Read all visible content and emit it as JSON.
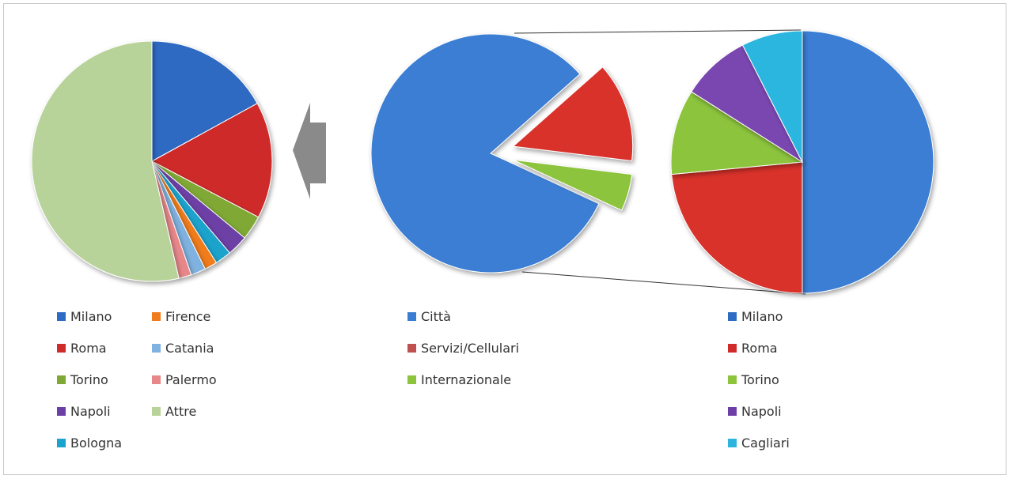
{
  "chart_data": [
    {
      "type": "pie",
      "name": "left",
      "slices": [
        {
          "label": "Milano",
          "value": 17.0,
          "color": "#2e6bc2"
        },
        {
          "label": "Roma",
          "value": 15.7,
          "color": "#cf2b2b"
        },
        {
          "label": "Torino",
          "value": 3.3,
          "color": "#7fa834"
        },
        {
          "label": "Napoli",
          "value": 2.8,
          "color": "#6d3fa6"
        },
        {
          "label": "Bologna",
          "value": 2.2,
          "color": "#1aa3cc"
        },
        {
          "label": "Firence",
          "value": 1.7,
          "color": "#f07c1e"
        },
        {
          "label": "Catania",
          "value": 2.0,
          "color": "#7fb2e0"
        },
        {
          "label": "Palermo",
          "value": 1.7,
          "color": "#e8878a"
        },
        {
          "label": "Attre",
          "value": 53.6,
          "color": "#b8d39a"
        }
      ]
    },
    {
      "type": "pie",
      "name": "middle",
      "slices": [
        {
          "label": "Città",
          "value": 81.5,
          "color": "#3a7ed4"
        },
        {
          "label": "Servizi/Cellulari",
          "value": 13.5,
          "color": "#d9312c"
        },
        {
          "label": "Internazionale",
          "value": 5.0,
          "color": "#8cc43c"
        }
      ]
    },
    {
      "type": "pie",
      "name": "right",
      "slices": [
        {
          "label": "Milano",
          "value": 50.0,
          "color": "#3a7ed4"
        },
        {
          "label": "Roma",
          "value": 23.5,
          "color": "#d9312c"
        },
        {
          "label": "Torino",
          "value": 10.5,
          "color": "#8cc43c"
        },
        {
          "label": "Napoli",
          "value": 8.5,
          "color": "#7a47b0"
        },
        {
          "label": "Cagliari",
          "value": 7.5,
          "color": "#2cb6df"
        }
      ]
    }
  ],
  "legends": {
    "left": [
      {
        "label": "Milano",
        "color": "#2e6bc2"
      },
      {
        "label": "Roma",
        "color": "#cf2b2b"
      },
      {
        "label": "Torino",
        "color": "#7fa834"
      },
      {
        "label": "Napoli",
        "color": "#6d3fa6"
      },
      {
        "label": "Bologna",
        "color": "#1aa3cc"
      },
      {
        "label": "Firence",
        "color": "#f07c1e"
      },
      {
        "label": "Catania",
        "color": "#7fb2e0"
      },
      {
        "label": "Palermo",
        "color": "#e8878a"
      },
      {
        "label": "Attre",
        "color": "#b8d39a"
      }
    ],
    "middle": [
      {
        "label": "Città",
        "color": "#3a7ed4"
      },
      {
        "label": "Servizi/Cellulari",
        "color": "#c05050"
      },
      {
        "label": "Internazionale",
        "color": "#8cc43c"
      }
    ],
    "right": [
      {
        "label": "Milano",
        "color": "#2e6bc2"
      },
      {
        "label": "Roma",
        "color": "#cf2b2b"
      },
      {
        "label": "Torino",
        "color": "#8cc43c"
      },
      {
        "label": "Napoli",
        "color": "#6d3fa6"
      },
      {
        "label": "Cagliari",
        "color": "#2cb6df"
      }
    ]
  },
  "icons": {
    "arrow": "left-arrow-icon"
  },
  "colors": {
    "arrow": "#8a8a8a",
    "connector": "#333333"
  }
}
